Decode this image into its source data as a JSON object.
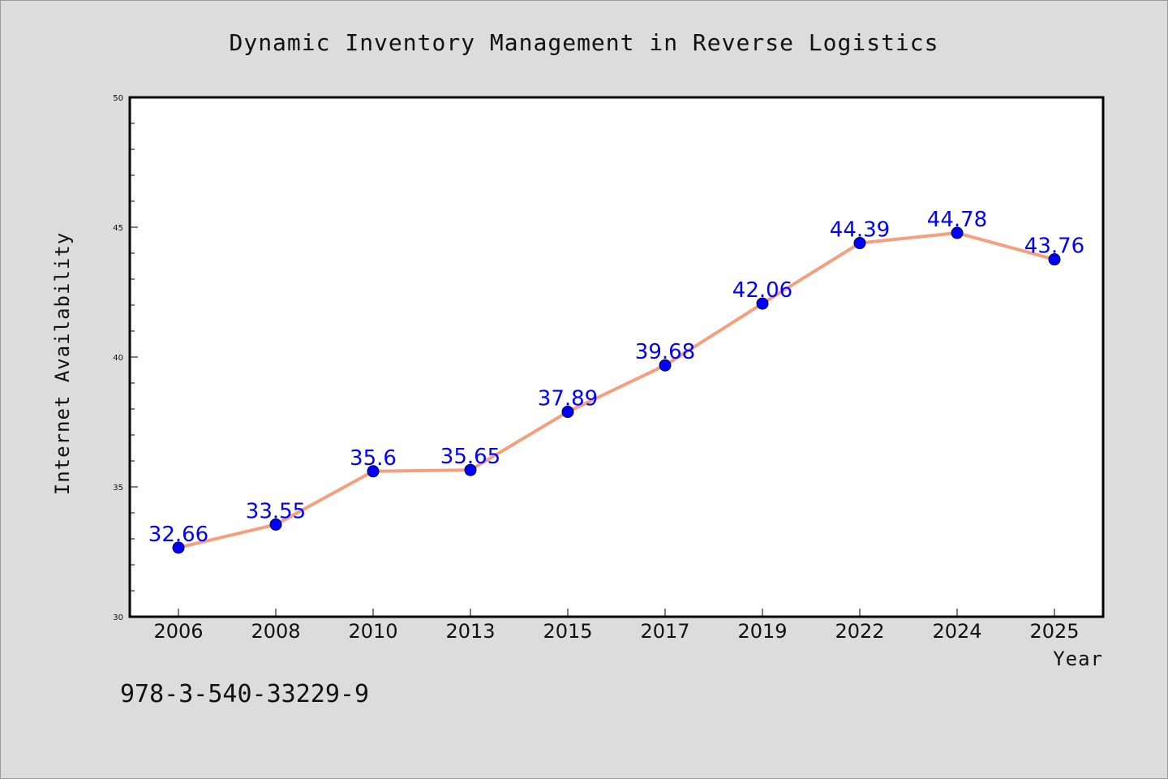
{
  "chart_data": {
    "type": "line",
    "title": "Dynamic Inventory Management in Reverse Logistics",
    "xlabel": "Year",
    "ylabel": "Internet Availability",
    "categories": [
      "2006",
      "2008",
      "2010",
      "2013",
      "2015",
      "2017",
      "2019",
      "2022",
      "2024",
      "2025"
    ],
    "series": [
      {
        "values": [
          32.66,
          33.55,
          35.6,
          35.65,
          37.89,
          39.68,
          42.06,
          44.39,
          44.78,
          43.76
        ]
      }
    ],
    "data_labels": [
      "32.66",
      "33.55",
      "35.6",
      "35.65",
      "37.89",
      "39.68",
      "42.06",
      "44.39",
      "44.78",
      "43.76"
    ],
    "ylim": [
      30,
      50
    ],
    "y_major_ticks": [
      30,
      35,
      40,
      45,
      50
    ],
    "y_minor_step": 1,
    "grid": false,
    "legend": "none",
    "colors": {
      "line": "#f4a07e",
      "marker": "#0000ff",
      "label": "#0000ff",
      "background": "#dcdcdc",
      "plot_background": "#ffffff"
    }
  },
  "footnote": "978-3-540-33229-9"
}
